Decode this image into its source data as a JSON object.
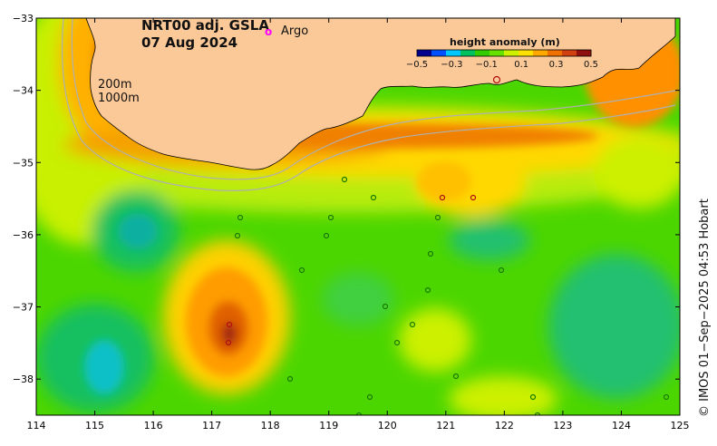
{
  "title": {
    "product": "NRT00 adj. GSLA",
    "date": "07 Aug 2024"
  },
  "legend": {
    "argo_symbol": "o",
    "argo_label": "Argo"
  },
  "colorbar": {
    "title": "height anomaly (m)",
    "tick_labels": [
      "−0.5",
      "−0.3",
      "−0.1",
      "0.1",
      "0.3",
      "0.5"
    ],
    "colors": [
      "#00008c",
      "#0050ff",
      "#00c8ff",
      "#00c060",
      "#33cc00",
      "#66e000",
      "#ccf000",
      "#ffe000",
      "#ffa800",
      "#f07000",
      "#d04010",
      "#901010"
    ]
  },
  "isobaths": {
    "shallow": "200m",
    "deep": "1000m"
  },
  "axes": {
    "x_ticks": [
      "114",
      "115",
      "116",
      "117",
      "118",
      "119",
      "120",
      "121",
      "122",
      "123",
      "124",
      "125"
    ],
    "y_ticks": [
      "−33",
      "−34",
      "−35",
      "−36",
      "−37",
      "−38"
    ],
    "lon_range": [
      114,
      125
    ],
    "lat_range": [
      -38.5,
      -33
    ]
  },
  "credit": "© IMOS 01−Sep−2025 04:53 Hobart",
  "colors": {
    "land": "#fbc998",
    "background_sla": "#4cd600"
  }
}
